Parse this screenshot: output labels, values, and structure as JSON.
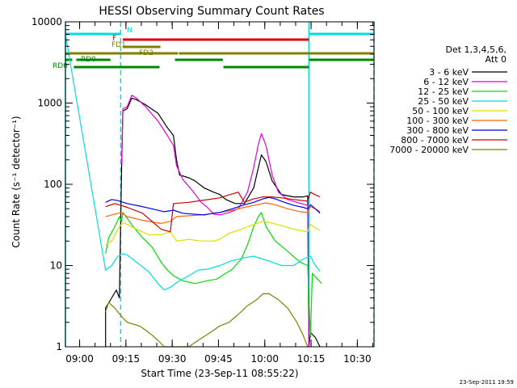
{
  "chart_data": {
    "type": "line",
    "title": "HESSI Observing Summary Count Rates",
    "xlabel": "Start Time (23-Sep-11 08:55:22)",
    "ylabel": "Count Rate (s⁻¹ detector⁻¹)",
    "yscale": "log",
    "ylim": [
      1,
      10000
    ],
    "xlim_minutes": [
      0,
      100
    ],
    "x_ticks": [
      {
        "label": "09:00",
        "minute": 4.6
      },
      {
        "label": "09:15",
        "minute": 19.6
      },
      {
        "label": "09:30",
        "minute": 34.6
      },
      {
        "label": "09:45",
        "minute": 49.6
      },
      {
        "label": "10:00",
        "minute": 64.6
      },
      {
        "label": "10:15",
        "minute": 79.6
      },
      {
        "label": "10:30",
        "minute": 94.6
      }
    ],
    "y_ticks": [
      {
        "label": "1",
        "value": 1
      },
      {
        "label": "10",
        "value": 10
      },
      {
        "label": "100",
        "value": 100
      },
      {
        "label": "1000",
        "value": 1000
      },
      {
        "label": "10000",
        "value": 10000
      }
    ],
    "legend": {
      "placement": "right",
      "header": [
        "Det 1,3,4,5,6,",
        "Att 0"
      ],
      "entries": [
        "3 - 6 keV",
        "6 - 12 keV",
        "12 - 25 keV",
        "25 - 50 keV",
        "50 - 100 keV",
        "100 - 300 keV",
        "300 - 800 keV",
        "800 - 7000 keV",
        "7000 - 20000 keV"
      ]
    },
    "series": [
      {
        "name": "3 - 6 keV",
        "color": "#000000",
        "points": [
          [
            13,
            1
          ],
          [
            13,
            3
          ],
          [
            15,
            4
          ],
          [
            16.5,
            5
          ],
          [
            17.5,
            4
          ],
          [
            18.2,
            150
          ],
          [
            18.6,
            800
          ],
          [
            20,
            850
          ],
          [
            21.5,
            1150
          ],
          [
            23,
            1100
          ],
          [
            26,
            950
          ],
          [
            30,
            750
          ],
          [
            33,
            500
          ],
          [
            35,
            400
          ],
          [
            36,
            200
          ],
          [
            37,
            130
          ],
          [
            40,
            120
          ],
          [
            42,
            110
          ],
          [
            45,
            90
          ],
          [
            48,
            80
          ],
          [
            50,
            75
          ],
          [
            52,
            65
          ],
          [
            55,
            58
          ],
          [
            58,
            58
          ],
          [
            61,
            90
          ],
          [
            62.5,
            160
          ],
          [
            63.5,
            230
          ],
          [
            65,
            190
          ],
          [
            67,
            110
          ],
          [
            70,
            75
          ],
          [
            74,
            70
          ],
          [
            77,
            70
          ],
          [
            78.5,
            72
          ],
          [
            78.9,
            1
          ],
          [
            79.4,
            1.5
          ],
          [
            81,
            1.3
          ],
          [
            82.5,
            1
          ]
        ]
      },
      {
        "name": "6 - 12 keV",
        "color": "#dd00dd",
        "points": [
          [
            18.2,
            180
          ],
          [
            18.6,
            850
          ],
          [
            20,
            900
          ],
          [
            21.5,
            1250
          ],
          [
            23,
            1150
          ],
          [
            26,
            900
          ],
          [
            30,
            600
          ],
          [
            33,
            400
          ],
          [
            35,
            300
          ],
          [
            36,
            170
          ],
          [
            38,
            115
          ],
          [
            41,
            85
          ],
          [
            44,
            60
          ],
          [
            46,
            52
          ],
          [
            48,
            43
          ],
          [
            50,
            42
          ],
          [
            53,
            45
          ],
          [
            56,
            50
          ],
          [
            59,
            80
          ],
          [
            61,
            160
          ],
          [
            62.5,
            310
          ],
          [
            63.5,
            420
          ],
          [
            65,
            300
          ],
          [
            67,
            130
          ],
          [
            69,
            80
          ],
          [
            72,
            65
          ],
          [
            75,
            60
          ],
          [
            78.5,
            55
          ],
          [
            78.9,
            1
          ]
        ]
      },
      {
        "name": "12 - 25 keV",
        "color": "#00dd00",
        "points": [
          [
            13,
            14
          ],
          [
            14,
            22
          ],
          [
            16,
            30
          ],
          [
            17.5,
            40
          ],
          [
            18.2,
            35
          ],
          [
            18.6,
            45
          ],
          [
            20,
            38
          ],
          [
            22,
            30
          ],
          [
            25,
            22
          ],
          [
            28,
            17
          ],
          [
            31,
            11
          ],
          [
            33,
            8.8
          ],
          [
            35,
            7.5
          ],
          [
            38,
            6.5
          ],
          [
            42,
            6.0
          ],
          [
            46,
            6.5
          ],
          [
            49,
            6.8
          ],
          [
            51,
            7.6
          ],
          [
            54,
            9
          ],
          [
            57,
            12
          ],
          [
            59,
            18
          ],
          [
            61,
            30
          ],
          [
            62.5,
            40
          ],
          [
            63.5,
            45
          ],
          [
            65,
            30
          ],
          [
            68,
            20
          ],
          [
            72,
            15
          ],
          [
            76,
            11
          ],
          [
            78.5,
            10
          ],
          [
            79.4,
            1.3
          ],
          [
            80,
            8
          ],
          [
            83,
            6
          ]
        ]
      },
      {
        "name": "25 - 50 keV",
        "color": "#00dddd",
        "points": [
          [
            0,
            1
          ],
          [
            0,
            7000
          ],
          [
            13,
            8.8
          ],
          [
            15,
            10
          ],
          [
            17,
            13
          ],
          [
            18.6,
            14
          ],
          [
            20,
            13.5
          ],
          [
            23,
            11
          ],
          [
            27,
            8.4
          ],
          [
            30,
            6
          ],
          [
            32,
            5
          ],
          [
            34,
            5.4
          ],
          [
            37,
            6.5
          ],
          [
            40,
            7.5
          ],
          [
            43,
            8.8
          ],
          [
            46,
            9
          ],
          [
            50,
            10
          ],
          [
            54,
            11.5
          ],
          [
            58,
            12.5
          ],
          [
            61,
            13
          ],
          [
            64,
            12
          ],
          [
            67,
            11
          ],
          [
            70,
            10
          ],
          [
            74,
            10
          ],
          [
            77,
            12
          ],
          [
            79.4,
            13
          ],
          [
            81,
            10
          ],
          [
            82.5,
            8.5
          ]
        ]
      },
      {
        "name": "50 - 100 keV",
        "color": "#dddd00",
        "points": [
          [
            13,
            18
          ],
          [
            15,
            20
          ],
          [
            17,
            28
          ],
          [
            18.6,
            34
          ],
          [
            20,
            32
          ],
          [
            23,
            28
          ],
          [
            27,
            24
          ],
          [
            31,
            24
          ],
          [
            34,
            26
          ],
          [
            36,
            20
          ],
          [
            40,
            21
          ],
          [
            44,
            20
          ],
          [
            48,
            20
          ],
          [
            50,
            21
          ],
          [
            53,
            25
          ],
          [
            56,
            27
          ],
          [
            59,
            30
          ],
          [
            62,
            33
          ],
          [
            64,
            35
          ],
          [
            66,
            34
          ],
          [
            70,
            31
          ],
          [
            74,
            28
          ],
          [
            78.5,
            26
          ],
          [
            79.4,
            32
          ],
          [
            81,
            29
          ],
          [
            82.5,
            27
          ]
        ]
      },
      {
        "name": "100 - 300 keV",
        "color": "#ff6600",
        "points": [
          [
            13,
            40
          ],
          [
            15,
            42
          ],
          [
            18,
            45
          ],
          [
            20,
            40
          ],
          [
            25,
            36
          ],
          [
            31,
            33
          ],
          [
            34,
            35
          ],
          [
            36,
            40
          ],
          [
            40,
            41
          ],
          [
            44,
            42
          ],
          [
            48,
            44
          ],
          [
            50,
            45
          ],
          [
            54,
            48
          ],
          [
            58,
            52
          ],
          [
            62,
            56
          ],
          [
            65,
            59
          ],
          [
            68,
            56
          ],
          [
            72,
            50
          ],
          [
            76,
            46
          ],
          [
            78.5,
            45
          ],
          [
            79.4,
            53
          ],
          [
            81,
            50
          ],
          [
            82.5,
            46
          ]
        ]
      },
      {
        "name": "300 - 800 keV",
        "color": "#0000ee",
        "points": [
          [
            13,
            60
          ],
          [
            15,
            65
          ],
          [
            17,
            63
          ],
          [
            20,
            58
          ],
          [
            24,
            54
          ],
          [
            28,
            50
          ],
          [
            32,
            46
          ],
          [
            35,
            48
          ],
          [
            38,
            44
          ],
          [
            41,
            43
          ],
          [
            45,
            42
          ],
          [
            48,
            44
          ],
          [
            50,
            45
          ],
          [
            54,
            50
          ],
          [
            58,
            56
          ],
          [
            61,
            60
          ],
          [
            64,
            66
          ],
          [
            66,
            69
          ],
          [
            68,
            66
          ],
          [
            71,
            60
          ],
          [
            74,
            55
          ],
          [
            77,
            52
          ],
          [
            78.5,
            50
          ],
          [
            79.4,
            56
          ],
          [
            81,
            50
          ],
          [
            82.5,
            44
          ]
        ]
      },
      {
        "name": "800 - 7000 keV",
        "color": "#cc0000",
        "points": [
          [
            13,
            53
          ],
          [
            16,
            58
          ],
          [
            18,
            55
          ],
          [
            20,
            52
          ],
          [
            25,
            44
          ],
          [
            31,
            28
          ],
          [
            34,
            26
          ],
          [
            35,
            58
          ],
          [
            40,
            60
          ],
          [
            45,
            64
          ],
          [
            50,
            68
          ],
          [
            52,
            72
          ],
          [
            55,
            78
          ],
          [
            56,
            80
          ],
          [
            58,
            60
          ],
          [
            61,
            66
          ],
          [
            64,
            70
          ],
          [
            67,
            70
          ],
          [
            70,
            68
          ],
          [
            74,
            65
          ],
          [
            78.5,
            62
          ],
          [
            79.4,
            80
          ],
          [
            81,
            74
          ],
          [
            82.5,
            70
          ]
        ]
      },
      {
        "name": "7000 - 20000 keV",
        "color": "#808000",
        "points": [
          [
            13,
            2.7
          ],
          [
            14,
            3.5
          ],
          [
            16,
            3
          ],
          [
            18,
            2.4
          ],
          [
            20,
            2
          ],
          [
            22,
            1.9
          ],
          [
            24,
            1.8
          ],
          [
            26,
            1.6
          ],
          [
            28,
            1.4
          ],
          [
            30,
            1.2
          ],
          [
            32,
            1
          ],
          [
            40,
            1
          ],
          [
            43,
            1.2
          ],
          [
            47,
            1.5
          ],
          [
            50,
            1.8
          ],
          [
            53,
            2
          ],
          [
            56,
            2.5
          ],
          [
            59,
            3.2
          ],
          [
            62,
            3.8
          ],
          [
            64,
            4.5
          ],
          [
            66,
            4.5
          ],
          [
            69,
            3.8
          ],
          [
            72,
            3
          ],
          [
            75,
            2
          ],
          [
            77,
            1.4
          ],
          [
            78.5,
            1
          ]
        ]
      }
    ],
    "bars": [
      {
        "label": "N",
        "color": "#00dddd",
        "segments": [
          [
            0,
            17.9
          ],
          [
            78.9,
            100
          ]
        ]
      },
      {
        "label": "F",
        "color": "#dd0000",
        "segments": [
          [
            18.6,
            78.9
          ]
        ]
      },
      {
        "label": "FD1",
        "color": "#808000",
        "segments": [
          [
            18.6,
            30.8
          ]
        ]
      },
      {
        "label": "FD2",
        "color": "#808000",
        "segments": [
          [
            0,
            36.5
          ],
          [
            36.8,
            100
          ]
        ]
      },
      {
        "label": "RD0",
        "color": "#008800",
        "segments": [
          [
            0,
            2.2
          ],
          [
            3.5,
            14.6
          ],
          [
            35.5,
            51
          ],
          [
            78.9,
            100
          ]
        ]
      },
      {
        "label": "RD6",
        "color": "#008800",
        "segments": [
          [
            2.7,
            30.5
          ],
          [
            51.2,
            78.9
          ]
        ]
      }
    ],
    "vertical_markers": [
      {
        "minute": 0,
        "color": "#00dddd",
        "style": "solid"
      },
      {
        "minute": 17.9,
        "color": "#00dddd",
        "style": "dashed"
      },
      {
        "minute": 78.9,
        "color": "#00dddd",
        "style": "solid"
      },
      {
        "minute": 100,
        "color": "#00dddd",
        "style": "dashed"
      }
    ]
  },
  "footer_timestamp": "23-Sep-2011 19:59"
}
